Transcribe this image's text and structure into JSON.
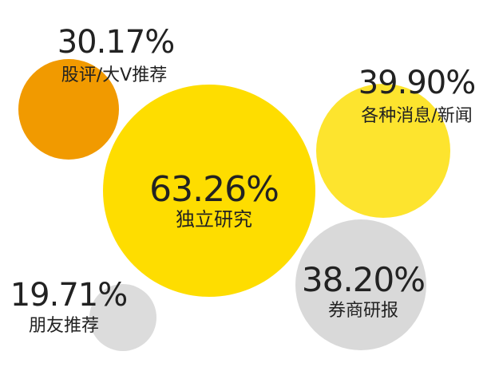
{
  "chart_data": {
    "type": "bubble",
    "title": "",
    "series": [
      {
        "label": "股评/大V推荐",
        "value_text": "30.17%",
        "value": 30.17,
        "color": "#f19a00"
      },
      {
        "label": "独立研究",
        "value_text": "63.26%",
        "value": 63.26,
        "color": "#fedd00"
      },
      {
        "label": "各种消息/新闻",
        "value_text": "39.90%",
        "value": 39.9,
        "color": "#fde42e"
      },
      {
        "label": "券商研报",
        "value_text": "38.20%",
        "value": 38.2,
        "color": "#d9d9d9"
      },
      {
        "label": "朋友推荐",
        "value_text": "19.71%",
        "value": 19.71,
        "color": "#dcdcdc"
      }
    ]
  }
}
